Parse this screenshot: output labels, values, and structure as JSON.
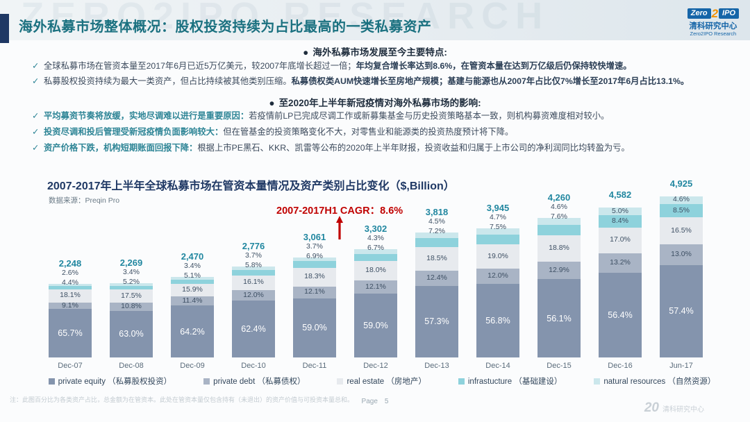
{
  "header": {
    "title": "海外私募市场整体概况：股权投资持续为占比最高的一类私募资产",
    "watermark": "ZERO2IPO RESEARCH",
    "logo": {
      "zero": "Zero",
      "two": "2",
      "ipo": "IPO",
      "cn": "清科研究中心",
      "en": "Zero2IPO Research"
    }
  },
  "bullets": {
    "dot_glyph": "●",
    "check_glyph": "✓",
    "section1": {
      "heading": "海外私募市场发展至今主要特点:",
      "items": [
        {
          "seg1": "全球私募市场在管资本量至2017年6月已近5万亿美元，较2007年底增长超过一倍；",
          "seg2": "年均复合增长率达到8.6%，在管资本量在达到万亿级后仍保持较快增速。"
        },
        {
          "seg1": "私募股权投资持续为最大一类资产，但占比持续被其他类别压缩。",
          "seg2": "私募债权类AUM快速增长至房地产规模；基建与能源也从2007年占比仅7%增长至2017年6月占比13.1%。"
        }
      ]
    },
    "section2": {
      "heading": "至2020年上半年新冠疫情对海外私募市场的影响:",
      "items": [
        {
          "lead": "平均募资节奏将放缓，实地尽调难以进行是重要原因：",
          "rest": "若疫情前LP已完成尽调工作或新募集基金与历史投资策略基本一致，则机构募资难度相对较小。"
        },
        {
          "lead": "投资尽调和投后管理受新冠疫情负面影响较大：",
          "rest": "但在管基金的投资策略变化不大，对零售业和能源类的投资热度预计将下降。"
        },
        {
          "lead": "资产价格下跌，机构短期账面回报下降：",
          "rest": "根据上市PE黑石、KKR、凯雷等公布的2020年上半年财报，投资收益和归属于上市公司的净利润同比均转盈为亏。"
        }
      ]
    }
  },
  "chart": {
    "title": "2007-2017年上半年全球私募市场在管资本量情况及资产类别占比变化（$,Billion）",
    "source": "数据来源：Preqin Pro",
    "cagr_annotation": "2007-2017H1 CAGR：8.6%",
    "annotation_color": "#C00000",
    "total_label_color": "#2187A0"
  },
  "chart_data": {
    "type": "bar",
    "stacked": true,
    "title": "2007-2017年上半年全球私募市场在管资本量情况及资产类别占比变化（$,Billion）",
    "xlabel": "",
    "ylabel": "",
    "legend_position": "bottom",
    "grid": false,
    "categories": [
      "Dec-07",
      "Dec-08",
      "Dec-09",
      "Dec-10",
      "Dec-11",
      "Dec-12",
      "Dec-13",
      "Dec-14",
      "Dec-15",
      "Dec-16",
      "Jun-17"
    ],
    "totals": [
      2248,
      2269,
      2470,
      2776,
      3061,
      3302,
      3818,
      3945,
      4260,
      4582,
      4925
    ],
    "totals_unit": "$,Billion",
    "series": [
      {
        "name": "private equity （私募股权投资）",
        "color": "#8494AD",
        "values": [
          65.7,
          63.0,
          64.2,
          62.4,
          59.0,
          59.0,
          57.3,
          56.8,
          56.1,
          56.4,
          57.4
        ]
      },
      {
        "name": "private debt （私募债权）",
        "color": "#A9B4C5",
        "values": [
          9.1,
          10.8,
          11.4,
          12.0,
          12.1,
          12.1,
          12.4,
          12.0,
          12.9,
          13.2,
          13.0
        ]
      },
      {
        "name": "real estate （房地产）",
        "color": "#E7EAEE",
        "values": [
          18.1,
          17.5,
          15.9,
          16.1,
          18.3,
          18.0,
          18.5,
          19.0,
          18.8,
          17.0,
          16.5
        ]
      },
      {
        "name": "infrastucture （基础建设）",
        "color": "#8ED2DC",
        "values": [
          4.4,
          5.2,
          5.1,
          5.8,
          6.9,
          6.7,
          7.2,
          7.5,
          7.6,
          8.4,
          8.5
        ]
      },
      {
        "name": "natural resources （自然资源）",
        "color": "#CBE7EC",
        "values": [
          2.6,
          3.4,
          3.4,
          3.7,
          3.7,
          4.3,
          4.5,
          4.7,
          4.6,
          5.0,
          4.6
        ]
      }
    ],
    "values_unit": "%"
  },
  "footer": {
    "note": "注：此图百分比为各类资产占比，总金额为在管资本。此处在管资本量仅包含持有（未退出）的资产价值与可投资本量总和。",
    "page_label": "Page",
    "page_number": "5",
    "brand_20": "20",
    "brand_cn": "清科研究中心"
  }
}
